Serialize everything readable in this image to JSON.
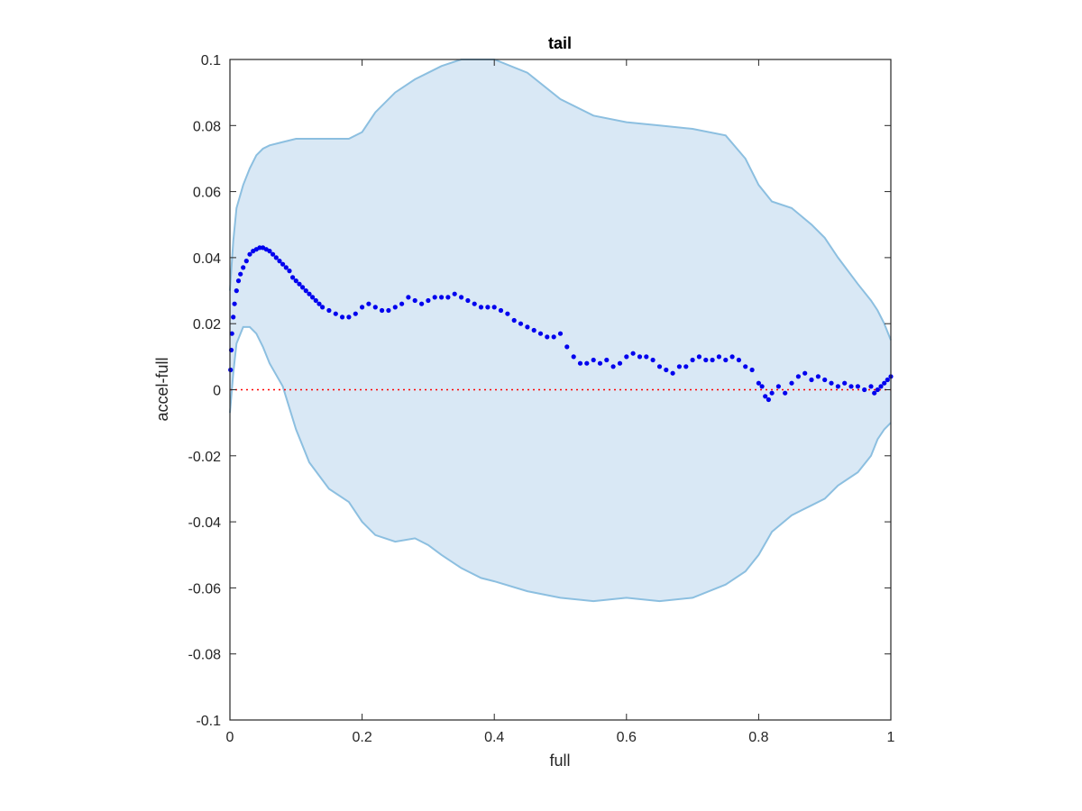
{
  "chart_data": {
    "type": "scatter",
    "title": "tail",
    "xlabel": "full",
    "ylabel": "accel-full",
    "xlim": [
      0,
      1
    ],
    "ylim": [
      -0.1,
      0.1
    ],
    "x_ticks": [
      0,
      0.2,
      0.4,
      0.6,
      0.8,
      1
    ],
    "x_tick_labels": [
      "0",
      "0.2",
      "0.4",
      "0.6",
      "0.8",
      "1"
    ],
    "y_ticks": [
      -0.1,
      -0.08,
      -0.06,
      -0.04,
      -0.02,
      0,
      0.02,
      0.04,
      0.06,
      0.08,
      0.1
    ],
    "y_tick_labels": [
      "-0.1",
      "-0.08",
      "-0.06",
      "-0.04",
      "-0.02",
      "0",
      "0.02",
      "0.04",
      "0.06",
      "0.08",
      "0.1"
    ],
    "grid": false,
    "reference_line": {
      "y": 0,
      "style": "dotted",
      "color": "#ff0000"
    },
    "band": {
      "fill_color": "#d9e8f5",
      "edge_color": "#8cbfe0",
      "x": [
        0,
        0.005,
        0.01,
        0.02,
        0.03,
        0.04,
        0.05,
        0.06,
        0.08,
        0.1,
        0.12,
        0.15,
        0.18,
        0.2,
        0.22,
        0.25,
        0.28,
        0.3,
        0.32,
        0.35,
        0.38,
        0.4,
        0.45,
        0.5,
        0.55,
        0.6,
        0.65,
        0.7,
        0.75,
        0.78,
        0.8,
        0.82,
        0.85,
        0.88,
        0.9,
        0.92,
        0.95,
        0.97,
        0.98,
        0.99,
        1
      ],
      "upper": [
        0.03,
        0.045,
        0.055,
        0.062,
        0.067,
        0.071,
        0.073,
        0.074,
        0.075,
        0.076,
        0.076,
        0.076,
        0.076,
        0.078,
        0.084,
        0.09,
        0.094,
        0.096,
        0.098,
        0.1,
        0.1,
        0.1,
        0.096,
        0.088,
        0.083,
        0.081,
        0.08,
        0.079,
        0.077,
        0.07,
        0.062,
        0.057,
        0.055,
        0.05,
        0.046,
        0.04,
        0.032,
        0.027,
        0.024,
        0.02,
        0.015
      ],
      "lower": [
        -0.007,
        0.005,
        0.014,
        0.019,
        0.019,
        0.017,
        0.013,
        0.008,
        0.001,
        -0.012,
        -0.022,
        -0.03,
        -0.034,
        -0.04,
        -0.044,
        -0.046,
        -0.045,
        -0.047,
        -0.05,
        -0.054,
        -0.057,
        -0.058,
        -0.061,
        -0.063,
        -0.064,
        -0.063,
        -0.064,
        -0.063,
        -0.059,
        -0.055,
        -0.05,
        -0.043,
        -0.038,
        -0.035,
        -0.033,
        -0.029,
        -0.025,
        -0.02,
        -0.015,
        -0.012,
        -0.01
      ]
    },
    "series": [
      {
        "color": "#0000ee",
        "marker": "dot",
        "x": [
          0.001,
          0.002,
          0.003,
          0.005,
          0.007,
          0.01,
          0.013,
          0.016,
          0.02,
          0.025,
          0.03,
          0.035,
          0.04,
          0.045,
          0.05,
          0.055,
          0.06,
          0.065,
          0.07,
          0.075,
          0.08,
          0.085,
          0.09,
          0.095,
          0.1,
          0.105,
          0.11,
          0.115,
          0.12,
          0.125,
          0.13,
          0.135,
          0.14,
          0.15,
          0.16,
          0.17,
          0.18,
          0.19,
          0.2,
          0.21,
          0.22,
          0.23,
          0.24,
          0.25,
          0.26,
          0.27,
          0.28,
          0.29,
          0.3,
          0.31,
          0.32,
          0.33,
          0.34,
          0.35,
          0.36,
          0.37,
          0.38,
          0.39,
          0.4,
          0.41,
          0.42,
          0.43,
          0.44,
          0.45,
          0.46,
          0.47,
          0.48,
          0.49,
          0.5,
          0.51,
          0.52,
          0.53,
          0.54,
          0.55,
          0.56,
          0.57,
          0.58,
          0.59,
          0.6,
          0.61,
          0.62,
          0.63,
          0.64,
          0.65,
          0.66,
          0.67,
          0.68,
          0.69,
          0.7,
          0.71,
          0.72,
          0.73,
          0.74,
          0.75,
          0.76,
          0.77,
          0.78,
          0.79,
          0.8,
          0.805,
          0.81,
          0.815,
          0.82,
          0.83,
          0.84,
          0.85,
          0.86,
          0.87,
          0.88,
          0.89,
          0.9,
          0.91,
          0.92,
          0.93,
          0.94,
          0.95,
          0.96,
          0.97,
          0.975,
          0.98,
          0.985,
          0.99,
          0.995,
          1.0
        ],
        "y": [
          0.006,
          0.012,
          0.017,
          0.022,
          0.026,
          0.03,
          0.033,
          0.035,
          0.037,
          0.039,
          0.041,
          0.042,
          0.0425,
          0.043,
          0.043,
          0.0425,
          0.042,
          0.041,
          0.04,
          0.039,
          0.038,
          0.037,
          0.036,
          0.034,
          0.033,
          0.032,
          0.031,
          0.03,
          0.029,
          0.028,
          0.027,
          0.026,
          0.025,
          0.024,
          0.023,
          0.022,
          0.022,
          0.023,
          0.025,
          0.026,
          0.025,
          0.024,
          0.024,
          0.025,
          0.026,
          0.028,
          0.027,
          0.026,
          0.027,
          0.028,
          0.028,
          0.028,
          0.029,
          0.028,
          0.027,
          0.026,
          0.025,
          0.025,
          0.025,
          0.024,
          0.023,
          0.021,
          0.02,
          0.019,
          0.018,
          0.017,
          0.016,
          0.016,
          0.017,
          0.013,
          0.01,
          0.008,
          0.008,
          0.009,
          0.008,
          0.009,
          0.007,
          0.008,
          0.01,
          0.011,
          0.01,
          0.01,
          0.009,
          0.007,
          0.006,
          0.005,
          0.007,
          0.007,
          0.009,
          0.01,
          0.009,
          0.009,
          0.01,
          0.009,
          0.01,
          0.009,
          0.007,
          0.006,
          0.002,
          0.001,
          -0.002,
          -0.003,
          -0.001,
          0.001,
          -0.001,
          0.002,
          0.004,
          0.005,
          0.003,
          0.004,
          0.003,
          0.002,
          0.001,
          0.002,
          0.001,
          0.001,
          0.0,
          0.001,
          -0.001,
          0.0,
          0.001,
          0.002,
          0.003,
          0.004
        ]
      }
    ]
  }
}
